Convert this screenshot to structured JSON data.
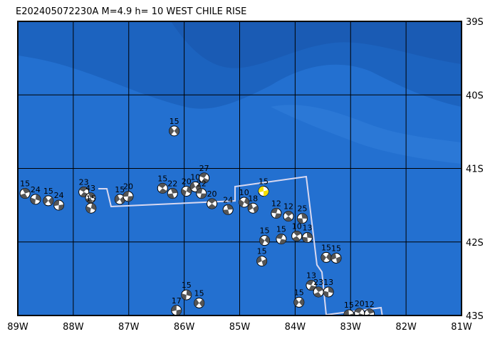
{
  "title": "E202405072230A M=4.9 h= 10 WEST CHILE RISE",
  "xlim": [
    -89,
    -81
  ],
  "ylim": [
    -43,
    -39
  ],
  "lon_ticks": [
    {
      "value": -89,
      "label": "89W"
    },
    {
      "value": -88,
      "label": "88W"
    },
    {
      "value": -87,
      "label": "87W"
    },
    {
      "value": -86,
      "label": "86W"
    },
    {
      "value": -85,
      "label": "85W"
    },
    {
      "value": -84,
      "label": "84W"
    },
    {
      "value": -83,
      "label": "83W"
    },
    {
      "value": -82,
      "label": "82W"
    },
    {
      "value": -81,
      "label": "81W"
    }
  ],
  "lat_ticks": [
    {
      "value": -39,
      "label": "39S"
    },
    {
      "value": -40,
      "label": "40S"
    },
    {
      "value": -41,
      "label": "41S"
    },
    {
      "value": -42,
      "label": "42S"
    },
    {
      "value": -43,
      "label": "43S"
    }
  ],
  "events": [
    {
      "lon": -86.18,
      "lat": -40.49,
      "depth": 15
    },
    {
      "lon": -84.57,
      "lat": -41.31,
      "depth": 15,
      "highlight": true
    },
    {
      "lon": -85.64,
      "lat": -41.13,
      "depth": 27
    },
    {
      "lon": -88.87,
      "lat": -41.34,
      "depth": 15
    },
    {
      "lon": -88.68,
      "lat": -41.42,
      "depth": 24
    },
    {
      "lon": -88.45,
      "lat": -41.44,
      "depth": 15
    },
    {
      "lon": -88.26,
      "lat": -41.5,
      "depth": 24
    },
    {
      "lon": -87.81,
      "lat": -41.32,
      "depth": 23
    },
    {
      "lon": -87.69,
      "lat": -41.4,
      "depth": 43
    },
    {
      "lon": -87.68,
      "lat": -41.54,
      "depth": 15
    },
    {
      "lon": -87.16,
      "lat": -41.42,
      "depth": 15
    },
    {
      "lon": -87.01,
      "lat": -41.38,
      "depth": 20
    },
    {
      "lon": -86.39,
      "lat": -41.27,
      "depth": 15
    },
    {
      "lon": -86.21,
      "lat": -41.34,
      "depth": 22
    },
    {
      "lon": -85.96,
      "lat": -41.31,
      "depth": 20
    },
    {
      "lon": -85.8,
      "lat": -41.25,
      "depth": 10
    },
    {
      "lon": -85.69,
      "lat": -41.34,
      "depth": 22
    },
    {
      "lon": -85.5,
      "lat": -41.48,
      "depth": 20
    },
    {
      "lon": -85.21,
      "lat": -41.56,
      "depth": 24
    },
    {
      "lon": -84.92,
      "lat": -41.46,
      "depth": 10
    },
    {
      "lon": -84.76,
      "lat": -41.54,
      "depth": 18
    },
    {
      "lon": -84.34,
      "lat": -41.61,
      "depth": 12
    },
    {
      "lon": -84.12,
      "lat": -41.65,
      "depth": 12
    },
    {
      "lon": -83.87,
      "lat": -41.68,
      "depth": 25
    },
    {
      "lon": -84.55,
      "lat": -41.98,
      "depth": 15
    },
    {
      "lon": -84.6,
      "lat": -42.26,
      "depth": 15
    },
    {
      "lon": -84.25,
      "lat": -41.96,
      "depth": 15
    },
    {
      "lon": -83.97,
      "lat": -41.92,
      "depth": 10
    },
    {
      "lon": -83.78,
      "lat": -41.94,
      "depth": 13
    },
    {
      "lon": -83.44,
      "lat": -42.21,
      "depth": 15
    },
    {
      "lon": -83.26,
      "lat": -42.22,
      "depth": 15
    },
    {
      "lon": -83.71,
      "lat": -42.59,
      "depth": 13
    },
    {
      "lon": -83.58,
      "lat": -42.68,
      "depth": 23
    },
    {
      "lon": -83.4,
      "lat": -42.68,
      "depth": 13
    },
    {
      "lon": -83.93,
      "lat": -42.82,
      "depth": 15
    },
    {
      "lon": -83.03,
      "lat": -42.99,
      "depth": 15
    },
    {
      "lon": -82.84,
      "lat": -42.97,
      "depth": 20
    },
    {
      "lon": -82.66,
      "lat": -42.98,
      "depth": 12
    },
    {
      "lon": -85.96,
      "lat": -42.72,
      "depth": 15
    },
    {
      "lon": -85.73,
      "lat": -42.83,
      "depth": 15
    },
    {
      "lon": -86.14,
      "lat": -42.93,
      "depth": 17
    }
  ]
}
